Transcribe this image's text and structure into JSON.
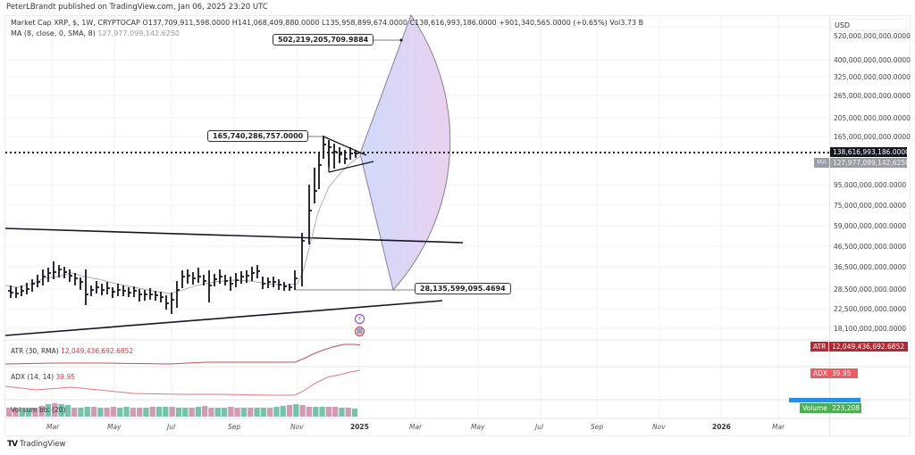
{
  "publisher_line": "PeterLBrandt published on TradingView.com, Jan 06, 2025 23:20 UTC",
  "legend": {
    "symbol": "Market Cap XRP, $, 1W, CRYPTOCAP",
    "open": "O137,709,911,598.0000",
    "high": "H141,068,409,880.0000",
    "low": "L135,958,899,674.0000",
    "close": "C138,616,993,186.0000",
    "change": "+901,340,565.0000 (+0.65%)",
    "volume": "Vol3.73 B",
    "ma_label": "MA (8, close, 0, SMA, 8)",
    "ma_value": "127,977,099,142.6250"
  },
  "price_axis": {
    "currency": "USD",
    "ticks": [
      "520,000,000,000.0000",
      "400,000,000,000.0000",
      "325,000,000,000.0000",
      "265,000,000,000.0000",
      "205,000,000,000.0000",
      "165,000,000,000.0000",
      "95,000,000,000.0000",
      "75,000,000,000.0000",
      "59,000,000,000.0000",
      "46,500,000,000.0000",
      "36,500,000,000.0000",
      "28,500,000,000.0000",
      "22,500,000,000.0000",
      "18,100,000,000.0000"
    ],
    "last_price": "138,616,993,186.0000",
    "ma_tag_label": "MA",
    "ma_tag_value": "127,977,099,142.6250"
  },
  "callouts": {
    "target_high": "502,219,205,709.9884",
    "flag_high": "165,740,286,757.0000",
    "base_low": "28,135,599,095.4694"
  },
  "indicators": {
    "atr": {
      "label": "ATR (30, RMA)",
      "value": "12,049,436,692.6852",
      "badge_label": "ATR",
      "badge_value": "12,049,436,692.6852",
      "color": "#b22833"
    },
    "adx": {
      "label": "ADX (14, 14)",
      "value": "39.95",
      "badge_label": "ADX",
      "badge_value": "39.95",
      "color": "#ef5a63"
    },
    "volume": {
      "label": "Vol sum btc (20)",
      "badge_label": "Volume",
      "badge_value": "223,208",
      "color": "#4caf50"
    }
  },
  "time_axis": {
    "labels": [
      "Mar",
      "May",
      "Jul",
      "Sep",
      "Nov",
      "2025",
      "Mar",
      "May",
      "Jul",
      "Sep",
      "Nov",
      "2026",
      "Mar"
    ]
  },
  "branding": {
    "logo_text": "TradingView",
    "logo_mark": "TV"
  },
  "chart_data": {
    "type": "ohlc-bar",
    "title": "Market Cap XRP, $, 1W, CRYPTOCAP",
    "scale": "log",
    "ylabel": "USD",
    "yticks": [
      520000000000.0,
      400000000000.0,
      325000000000.0,
      265000000000.0,
      205000000000.0,
      165000000000.0,
      95000000000.0,
      75000000000.0,
      59000000000.0,
      46500000000.0,
      36500000000.0,
      28500000000.0,
      22500000000.0,
      18100000000.0
    ],
    "xticks": [
      "Mar",
      "May",
      "Jul",
      "Sep",
      "Nov",
      "2025",
      "Mar",
      "May",
      "Jul",
      "Sep",
      "Nov",
      "2026",
      "Mar"
    ],
    "last": {
      "open": 137709911598,
      "high": 141068409880,
      "low": 135958899674,
      "close": 138616993186,
      "change": 901340565,
      "change_pct": 0.65,
      "volume": "3.73B"
    },
    "ma": {
      "type": "SMA",
      "length": 8,
      "value": 127977099142.625
    },
    "annotations": [
      {
        "type": "price_label",
        "value": 502219205709.9884,
        "note": "projected target (top of arc)"
      },
      {
        "type": "price_label",
        "value": 165740286757.0,
        "note": "pennant high"
      },
      {
        "type": "price_label",
        "value": 28135599095.4694,
        "note": "breakout base low"
      },
      {
        "type": "shape",
        "value": "pennant/triangle Nov 2024 - Jan 2025"
      },
      {
        "type": "shape",
        "value": "arc projection sector (blue-purple gradient)"
      },
      {
        "type": "trendline",
        "value": "descending resistance line ~ 59B -> 48B"
      },
      {
        "type": "trendline",
        "value": "ascending support line ~ 19B -> 25B"
      }
    ],
    "indicators": [
      {
        "name": "ATR (30, RMA)",
        "value": 12049436692.6852
      },
      {
        "name": "ADX (14, 14)",
        "value": 39.95
      },
      {
        "name": "Vol sum btc (20)",
        "value": 223208
      }
    ]
  }
}
